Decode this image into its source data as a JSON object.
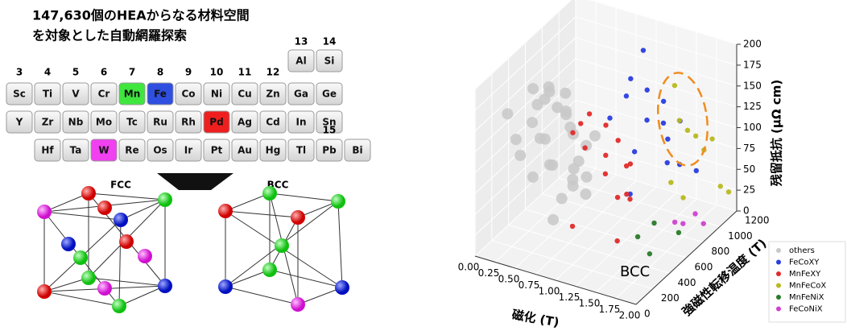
{
  "title_lines": [
    "147,630個のHEAからなる材料空間",
    "を対象とした自動網羅探索"
  ],
  "periodic_table": {
    "group_labels": [
      3,
      4,
      5,
      6,
      7,
      8,
      9,
      10,
      11,
      12,
      13,
      14,
      15
    ],
    "rows": [
      [
        "Al",
        "Si"
      ],
      [
        "Sc",
        "Ti",
        "V",
        "Cr",
        "Mn",
        "Fe",
        "Co",
        "Ni",
        "Cu",
        "Zn",
        "Ga",
        "Ge"
      ],
      [
        "Y",
        "Zr",
        "Nb",
        "Mo",
        "Tc",
        "Ru",
        "Rh",
        "Pd",
        "Ag",
        "Cd",
        "In",
        "Sn"
      ],
      [
        "Hf",
        "Ta",
        "W",
        "Re",
        "Os",
        "Ir",
        "Pt",
        "Au",
        "Hg",
        "Tl",
        "Pb",
        "Bi"
      ]
    ],
    "highlight_colors": {
      "Mn": "#3ee63e",
      "Fe": "#2f4fe0",
      "Pd": "#f01f1f",
      "W": "#f040f0"
    }
  },
  "structures": [
    "FCC",
    "BCC"
  ],
  "chart_data": {
    "type": "scatter3d",
    "annotation": "BCC",
    "x_label": "磁化 (T)",
    "y_label": "強磁性転移温度 (T)",
    "z_label": "残留抵抗 (μΩ cm)",
    "xlim": [
      0,
      2
    ],
    "xticks": [
      {
        "value": 0,
        "label": "0.00"
      },
      {
        "value": 0.25,
        "label": "0.25"
      },
      {
        "value": 0.5,
        "label": "0.50"
      },
      {
        "value": 0.75,
        "label": "0.75"
      },
      {
        "value": 1,
        "label": "1.00"
      },
      {
        "value": 1.25,
        "label": "1.25"
      },
      {
        "value": 1.5,
        "label": "1.50"
      },
      {
        "value": 1.75,
        "label": "1.75"
      },
      {
        "value": 2,
        "label": "2.00"
      }
    ],
    "ylim": [
      0,
      1200
    ],
    "yticks": [
      0,
      200,
      400,
      600,
      800,
      1000,
      1200
    ],
    "zlim": [
      0,
      200
    ],
    "zticks": [
      0,
      25,
      50,
      75,
      100,
      125,
      150,
      175,
      200
    ],
    "series": [
      {
        "name": "others",
        "color": "#c8c8c8",
        "x": [
          0.2,
          0.3,
          0.4,
          0.5,
          0.25,
          0.35,
          0.45,
          0.55,
          0.3,
          0.4,
          0.5,
          0.6,
          0.2,
          0.35,
          0.45,
          0.7,
          0.8,
          0.15,
          0.3,
          0.5,
          0.65,
          0.4,
          0.25,
          0.55,
          0.75,
          0.9,
          0.35,
          0.6,
          0.45,
          0.5
        ],
        "y": [
          500,
          600,
          700,
          400,
          300,
          800,
          550,
          650,
          200,
          450,
          350,
          750,
          700,
          900,
          250,
          500,
          400,
          600,
          100,
          850,
          300,
          650,
          450,
          550,
          600,
          300,
          750,
          200,
          500,
          950
        ],
        "z": [
          160,
          150,
          120,
          180,
          100,
          90,
          140,
          60,
          130,
          110,
          170,
          80,
          50,
          40,
          150,
          120,
          70,
          130,
          170,
          30,
          100,
          20,
          60,
          160,
          40,
          90,
          110,
          140,
          10,
          70
        ]
      },
      {
        "name": "FeCoXY",
        "color": "#2a3de0",
        "x": [
          1.1,
          1.2,
          1.3,
          1.15,
          1.25,
          1.35,
          1.4,
          1.05,
          1.2,
          1.3,
          1.45,
          1.5,
          1.1,
          1.25,
          1.55
        ],
        "y": [
          800,
          900,
          1000,
          700,
          850,
          950,
          1100,
          600,
          750,
          1050,
          900,
          1000,
          950,
          650,
          1150
        ],
        "z": [
          170,
          150,
          130,
          160,
          120,
          110,
          100,
          140,
          90,
          80,
          70,
          60,
          190,
          50,
          40
        ]
      },
      {
        "name": "MnFeXY",
        "color": "#e02a2a",
        "x": [
          0.9,
          1.0,
          1.1,
          0.95,
          1.05,
          1.15,
          1.2,
          0.85,
          1.0,
          1.1,
          1.25,
          1.3,
          0.95,
          1.05,
          1.35
        ],
        "y": [
          500,
          600,
          650,
          400,
          550,
          450,
          700,
          350,
          300,
          750,
          500,
          600,
          250,
          800,
          400
        ],
        "z": [
          150,
          130,
          110,
          120,
          100,
          90,
          80,
          140,
          160,
          70,
          60,
          50,
          40,
          30,
          20
        ]
      },
      {
        "name": "MnFeCoX",
        "color": "#b8b820",
        "x": [
          1.6,
          1.65,
          1.7,
          1.75,
          1.8,
          1.6,
          1.7,
          1.85,
          1.9,
          1.75
        ],
        "y": [
          900,
          950,
          1000,
          1050,
          1100,
          800,
          850,
          1150,
          1200,
          700
        ],
        "z": [
          125,
          110,
          100,
          80,
          90,
          60,
          40,
          30,
          20,
          190
        ]
      },
      {
        "name": "MnFeNiX",
        "color": "#2a7a2a",
        "x": [
          1.5,
          1.6,
          1.7,
          1.8
        ],
        "y": [
          500,
          600,
          450,
          700
        ],
        "z": [
          20,
          30,
          10,
          15
        ]
      },
      {
        "name": "FeCoNiX",
        "color": "#d040d0",
        "x": [
          1.7,
          1.75,
          1.85,
          1.9
        ],
        "y": [
          750,
          800,
          850,
          900
        ],
        "z": [
          20,
          15,
          25,
          10
        ]
      }
    ]
  }
}
